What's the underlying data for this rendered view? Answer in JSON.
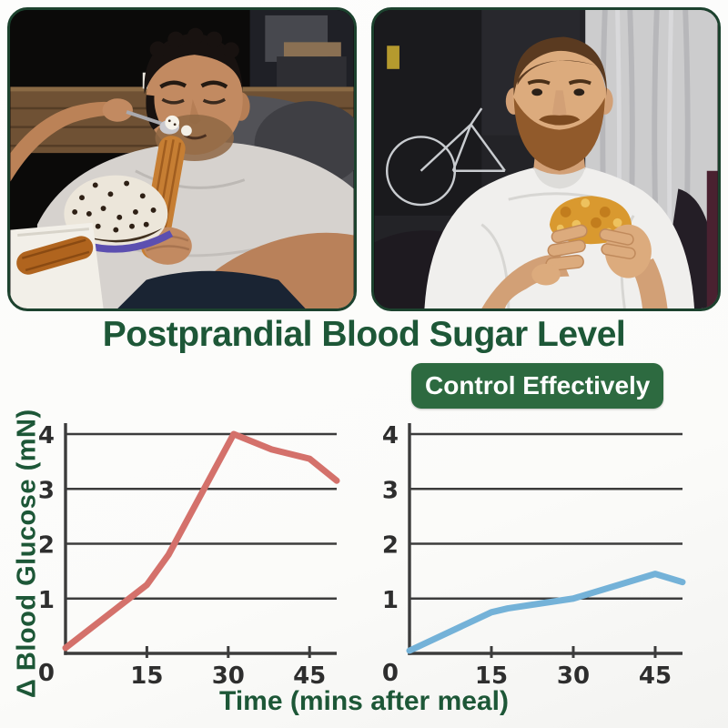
{
  "header": {
    "title": "Postprandial Blood Sugar Level",
    "badge": "Control Effectively"
  },
  "photos": {
    "left_alt": "Man reclining on a couch, frowning while eating a churro and a cream cake",
    "right_alt": "Bearded man in a white t-shirt on a couch eating a fried burger"
  },
  "chart_data": {
    "type": "line",
    "title": "Postprandial Blood Sugar Level",
    "xlabel": "Time (mins after meal)",
    "ylabel": "Δ Blood Glucose (mN)",
    "xlim": [
      0,
      50
    ],
    "ylim": [
      0,
      4
    ],
    "x_ticks": [
      15,
      30,
      45
    ],
    "y_ticks": [
      0,
      1,
      2,
      3,
      4
    ],
    "grid": true,
    "legend": "none",
    "panels": [
      {
        "position": "left",
        "color": "#d4716b",
        "x": [
          0,
          15,
          19,
          31,
          38,
          45,
          50
        ],
        "y": [
          0.1,
          1.25,
          1.8,
          4.0,
          3.72,
          3.55,
          3.15
        ]
      },
      {
        "position": "right",
        "color": "#74b2d8",
        "x": [
          0,
          15,
          18,
          30,
          45,
          50
        ],
        "y": [
          0.05,
          0.75,
          0.82,
          1.0,
          1.45,
          1.3
        ]
      }
    ]
  },
  "colors": {
    "title_green": "#1d5737",
    "badge_green": "#2d6a40",
    "line_red": "#d4716b",
    "line_blue": "#74b2d8",
    "grid_gray": "#3c3c3c"
  }
}
